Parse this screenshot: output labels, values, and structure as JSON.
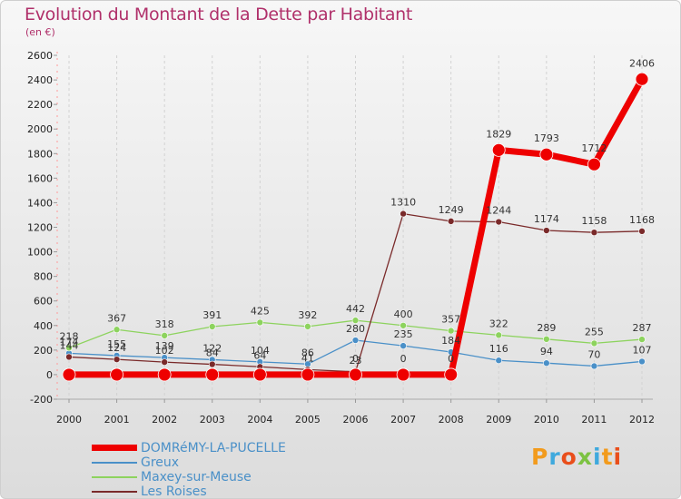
{
  "header": {
    "title": "Evolution du Montant de la Dette par Habitant",
    "subtitle": "(en €)"
  },
  "logo": {
    "text": "Proxiti"
  },
  "chart_data": {
    "type": "line",
    "title": "Evolution du Montant de la Dette par Habitant",
    "ylabel": "(en €)",
    "xlabel": "",
    "ylim": [
      -200,
      2600
    ],
    "yticks": [
      -200,
      0,
      200,
      400,
      600,
      800,
      1000,
      1200,
      1400,
      1600,
      1800,
      2000,
      2200,
      2400,
      2600
    ],
    "x": [
      "2000",
      "2001",
      "2002",
      "2003",
      "2004",
      "2005",
      "2006",
      "2007",
      "2008",
      "2009",
      "2010",
      "2011",
      "2012"
    ],
    "grid": "vertical dashed",
    "legend_position": "bottom-left",
    "series": [
      {
        "name": "Greux",
        "color": "#4a90c8",
        "values": [
          174,
          155,
          139,
          122,
          104,
          86,
          280,
          235,
          184,
          116,
          94,
          70,
          107
        ],
        "labels": [
          "174",
          "155",
          "139",
          "122",
          "104",
          "86",
          "280",
          "235",
          "184",
          "116",
          "94",
          "70",
          "107"
        ]
      },
      {
        "name": "Maxey-sur-Meuse",
        "color": "#8dd35e",
        "values": [
          218,
          367,
          318,
          391,
          425,
          392,
          442,
          400,
          357,
          322,
          289,
          255,
          287
        ],
        "labels": [
          "218",
          "367",
          "318",
          "391",
          "425",
          "392",
          "442",
          "400",
          "357",
          "322",
          "289",
          "255",
          "287"
        ]
      },
      {
        "name": "Les Roises",
        "color": "#7a2a2a",
        "values": [
          144,
          124,
          102,
          84,
          64,
          41,
          23,
          1310,
          1249,
          1244,
          1174,
          1158,
          1168
        ],
        "labels": [
          "144",
          "124",
          "102",
          "84",
          "64",
          "41",
          "23",
          "1310",
          "1249",
          "1244",
          "1174",
          "1158",
          "1168"
        ]
      },
      {
        "name": "DOMRéMY-LA-PUCELLE",
        "color": "#ee0000",
        "values": [
          0,
          0,
          0,
          0,
          0,
          0,
          0,
          0,
          0,
          1829,
          1793,
          1712,
          2406
        ],
        "labels": [
          "",
          "",
          "",
          "",
          "",
          "",
          "0",
          "0",
          "0",
          "1829",
          "1793",
          "1712",
          "2406"
        ]
      }
    ]
  }
}
